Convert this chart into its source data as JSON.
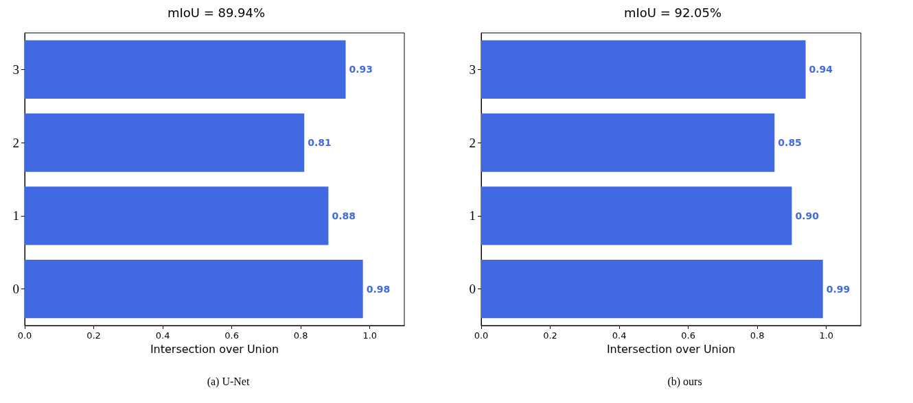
{
  "chart_data": [
    {
      "type": "bar",
      "orientation": "horizontal",
      "title": "mIoU = 89.94%",
      "xlabel": "Intersection over Union",
      "categories": [
        "3",
        "2",
        "1",
        "0"
      ],
      "values": [
        0.93,
        0.81,
        0.88,
        0.98
      ],
      "value_labels": [
        "0.93",
        "0.81",
        "0.88",
        "0.98"
      ],
      "color": "#4169e1",
      "xlim": [
        0,
        1.1
      ],
      "xticks": [
        {
          "value": 0,
          "label": "0.0"
        },
        {
          "value": 0.2,
          "label": "0.2"
        },
        {
          "value": 0.4,
          "label": "0.4"
        },
        {
          "value": 0.6,
          "label": "0.6"
        },
        {
          "value": 0.8,
          "label": "0.8"
        },
        {
          "value": 1,
          "label": "1.0"
        }
      ],
      "grid": false,
      "annotations": [
        "(a) U-Net"
      ]
    },
    {
      "type": "bar",
      "orientation": "horizontal",
      "title": "mIoU = 92.05%",
      "xlabel": "Intersection over Union",
      "categories": [
        "3",
        "2",
        "1",
        "0"
      ],
      "values": [
        0.94,
        0.85,
        0.9,
        0.99
      ],
      "value_labels": [
        "0.94",
        "0.85",
        "0.90",
        "0.99"
      ],
      "color": "#4169e1",
      "xlim": [
        0,
        1.1
      ],
      "xticks": [
        {
          "value": 0,
          "label": "0.0"
        },
        {
          "value": 0.2,
          "label": "0.2"
        },
        {
          "value": 0.4,
          "label": "0.4"
        },
        {
          "value": 0.6,
          "label": "0.6"
        },
        {
          "value": 0.8,
          "label": "0.8"
        },
        {
          "value": 1,
          "label": "1.0"
        }
      ],
      "grid": false,
      "annotations": [
        "(b) ours"
      ]
    }
  ]
}
